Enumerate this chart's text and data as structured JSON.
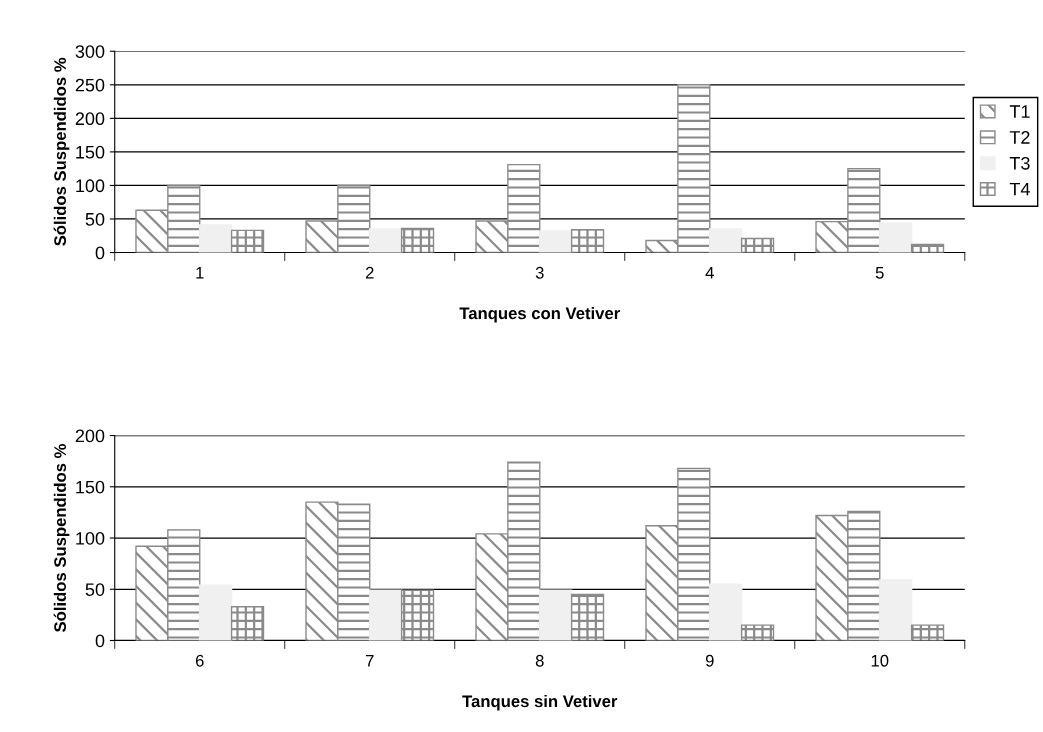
{
  "chart_data": [
    {
      "type": "bar",
      "xlabel": "Tanques con Vetiver",
      "ylabel": "Sólidos Suspendidos %",
      "categories": [
        "1",
        "2",
        "3",
        "4",
        "5"
      ],
      "series": [
        {
          "name": "T1",
          "color": "#8a8a8a",
          "values": [
            63,
            47,
            47,
            18,
            46
          ]
        },
        {
          "name": "T2",
          "color": "#8a8a8a",
          "values": [
            100,
            100,
            131,
            250,
            125
          ]
        },
        {
          "name": "T3",
          "color": "#f0f0f0",
          "values": [
            41,
            35,
            32,
            35,
            44
          ]
        },
        {
          "name": "T4",
          "color": "#8a8a8a",
          "values": [
            33,
            36,
            34,
            21,
            12
          ]
        }
      ],
      "ylim": [
        0,
        300
      ],
      "yticks": [
        0,
        50,
        100,
        150,
        200,
        250,
        300
      ],
      "grid": "y",
      "legend": "right"
    },
    {
      "type": "bar",
      "xlabel": "Tanques sin Vetiver",
      "ylabel": "Sólidos Suspendidos %",
      "categories": [
        "6",
        "7",
        "8",
        "9",
        "10"
      ],
      "series": [
        {
          "color": "#8a8a8a",
          "values": [
            92,
            135,
            104,
            112,
            122
          ]
        },
        {
          "color": "#8a8a8a",
          "values": [
            108,
            133,
            174,
            168,
            126
          ]
        },
        {
          "color": "#f0f0f0",
          "values": [
            54,
            49,
            49,
            55,
            59
          ]
        },
        {
          "color": "#8a8a8a",
          "values": [
            33,
            49,
            45,
            15,
            15
          ]
        }
      ],
      "ylim": [
        0,
        200
      ],
      "yticks": [
        0,
        50,
        100,
        150,
        200
      ],
      "grid": "y"
    }
  ]
}
